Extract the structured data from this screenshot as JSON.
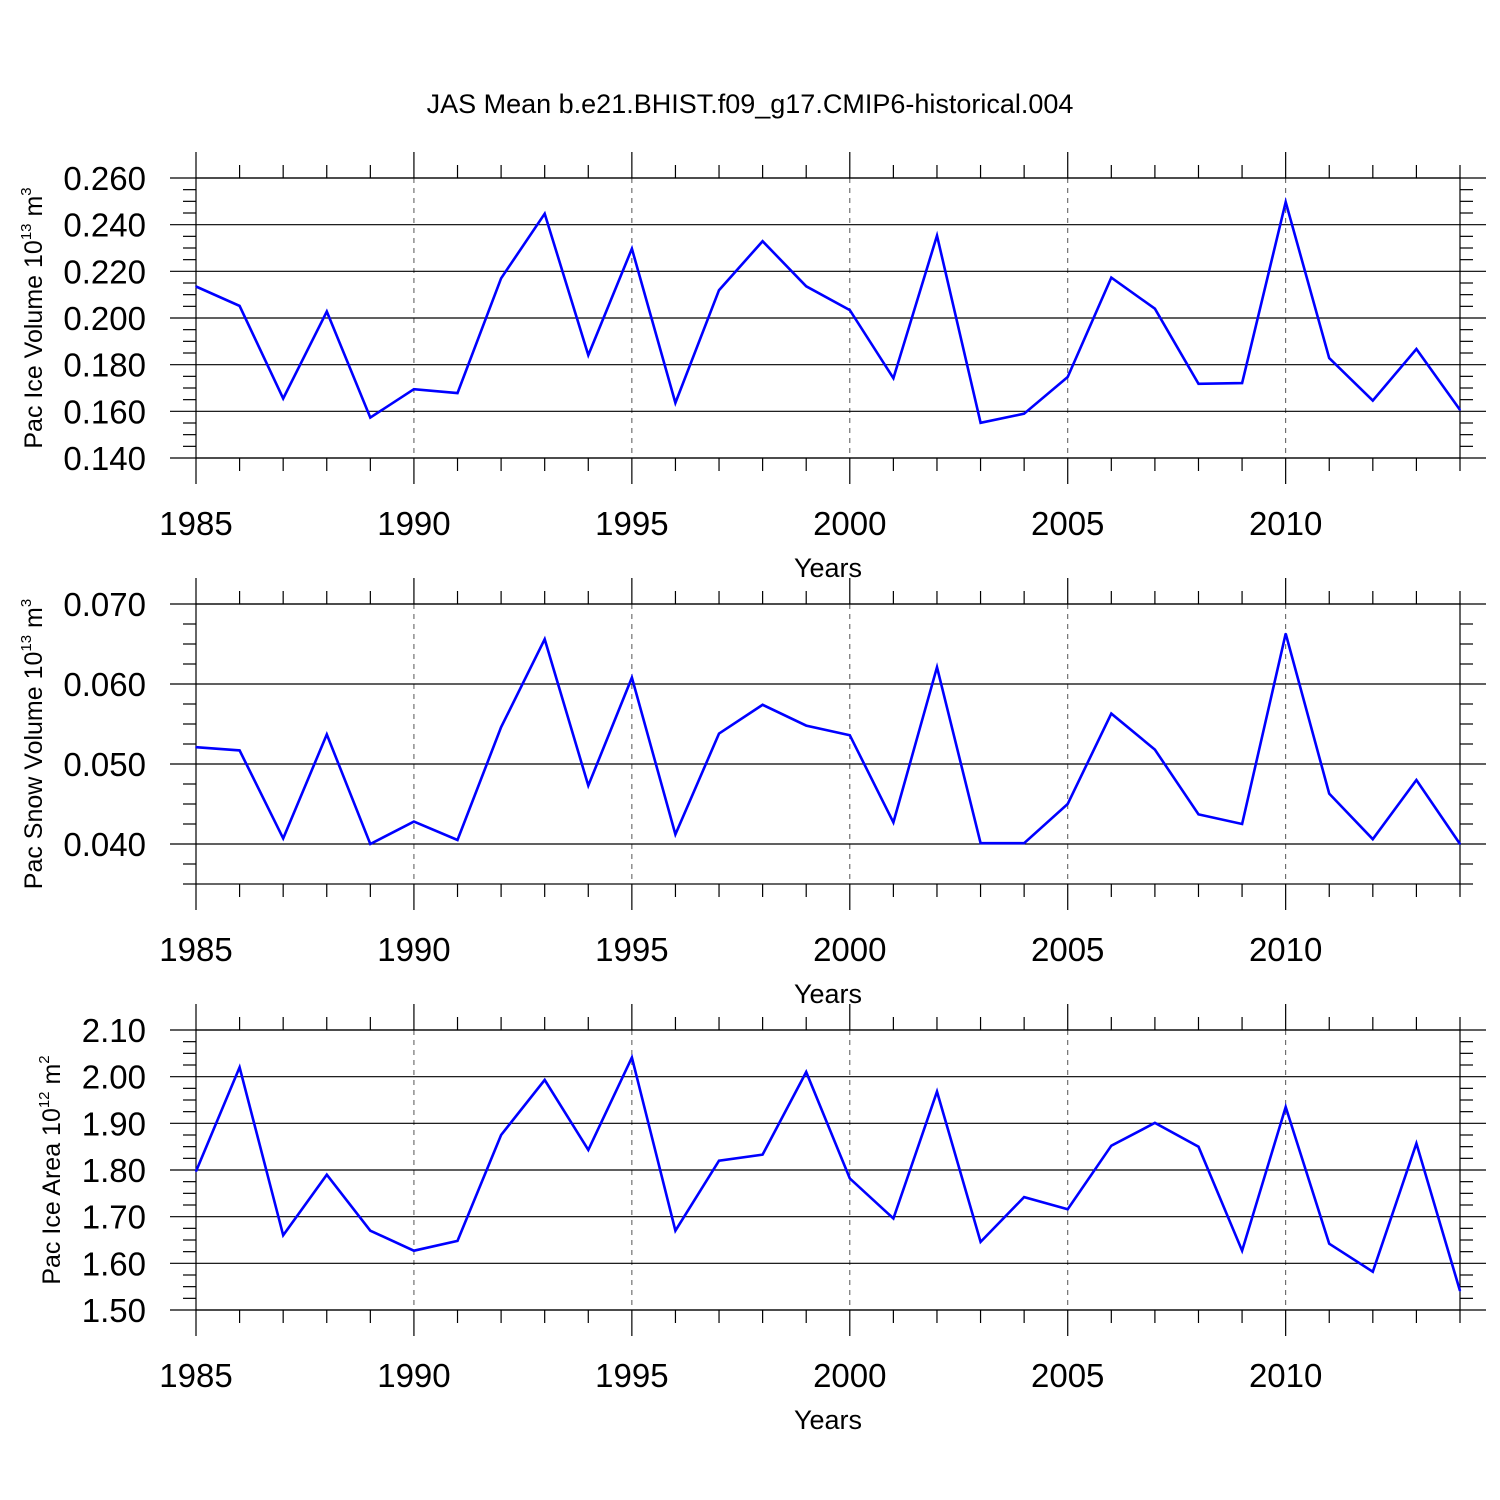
{
  "title": "JAS Mean b.e21.BHIST.f09_g17.CMIP6-historical.004",
  "chart_data": [
    {
      "type": "line",
      "ylabel": "Pac Ice Volume 10",
      "ylabel_exp": "13",
      "ylabel_unit": " m",
      "ylabel_unit_exp": "3",
      "xlabel": "Years",
      "xlim": [
        1985,
        2014
      ],
      "ylim": [
        0.14,
        0.26
      ],
      "yticks": [
        0.14,
        0.16,
        0.18,
        0.2,
        0.22,
        0.24,
        0.26
      ],
      "ytick_labels": [
        "0.140",
        "0.160",
        "0.180",
        "0.200",
        "0.220",
        "0.240",
        "0.260"
      ],
      "yminor_step": 0.005,
      "xticks": [
        1985,
        1990,
        1995,
        2000,
        2005,
        2010
      ],
      "xtick_labels": [
        "1985",
        "1990",
        "1995",
        "2000",
        "2005",
        "2010"
      ],
      "grid": "vertical dashed at major x ticks",
      "color": "#0000ff",
      "x": [
        1985,
        1986,
        1987,
        1988,
        1989,
        1990,
        1991,
        1992,
        1993,
        1994,
        1995,
        1996,
        1997,
        1998,
        1999,
        2000,
        2001,
        2002,
        2003,
        2004,
        2005,
        2006,
        2007,
        2008,
        2009,
        2010,
        2011,
        2012,
        2013,
        2014
      ],
      "values": [
        0.2135,
        0.2052,
        0.1655,
        0.2028,
        0.1573,
        0.1695,
        0.1678,
        0.217,
        0.2447,
        0.1841,
        0.2297,
        0.1636,
        0.2119,
        0.2329,
        0.2136,
        0.2034,
        0.1742,
        0.2353,
        0.1551,
        0.159,
        0.1747,
        0.2173,
        0.204,
        0.1718,
        0.1721,
        0.2497,
        0.1828,
        0.1646,
        0.1867,
        0.1606
      ]
    },
    {
      "type": "line",
      "ylabel": "Pac Snow Volume 10",
      "ylabel_exp": "13",
      "ylabel_unit": " m",
      "ylabel_unit_exp": "3",
      "xlabel": "Years",
      "xlim": [
        1985,
        2014
      ],
      "ylim": [
        0.035,
        0.07
      ],
      "yticks": [
        0.04,
        0.05,
        0.06,
        0.07
      ],
      "ytick_labels": [
        "0.040",
        "0.050",
        "0.060",
        "0.070"
      ],
      "yminor_step": 0.0025,
      "xticks": [
        1985,
        1990,
        1995,
        2000,
        2005,
        2010
      ],
      "xtick_labels": [
        "1985",
        "1990",
        "1995",
        "2000",
        "2005",
        "2010"
      ],
      "grid": "vertical dashed at major x ticks",
      "color": "#0000ff",
      "x": [
        1985,
        1986,
        1987,
        1988,
        1989,
        1990,
        1991,
        1992,
        1993,
        1994,
        1995,
        1996,
        1997,
        1998,
        1999,
        2000,
        2001,
        2002,
        2003,
        2004,
        2005,
        2006,
        2007,
        2008,
        2009,
        2010,
        2011,
        2012,
        2013,
        2014
      ],
      "values": [
        0.0521,
        0.0517,
        0.0407,
        0.0537,
        0.04,
        0.0428,
        0.0405,
        0.0546,
        0.0656,
        0.0473,
        0.0608,
        0.0412,
        0.0538,
        0.0574,
        0.0548,
        0.0536,
        0.0427,
        0.0621,
        0.0401,
        0.0401,
        0.045,
        0.0563,
        0.0518,
        0.0437,
        0.0425,
        0.0663,
        0.0463,
        0.0406,
        0.048,
        0.04
      ]
    },
    {
      "type": "line",
      "ylabel": "Pac Ice Area 10",
      "ylabel_exp": "12",
      "ylabel_unit": " m",
      "ylabel_unit_exp": "2",
      "xlabel": "Years",
      "xlim": [
        1985,
        2014
      ],
      "ylim": [
        1.5,
        2.1
      ],
      "yticks": [
        1.5,
        1.6,
        1.7,
        1.8,
        1.9,
        2.0,
        2.1
      ],
      "ytick_labels": [
        "1.50",
        "1.60",
        "1.70",
        "1.80",
        "1.90",
        "2.00",
        "2.10"
      ],
      "yminor_step": 0.025,
      "xticks": [
        1985,
        1990,
        1995,
        2000,
        2005,
        2010
      ],
      "xtick_labels": [
        "1985",
        "1990",
        "1995",
        "2000",
        "2005",
        "2010"
      ],
      "grid": "vertical dashed at major x ticks",
      "color": "#0000ff",
      "x": [
        1985,
        1986,
        1987,
        1988,
        1989,
        1990,
        1991,
        1992,
        1993,
        1994,
        1995,
        1996,
        1997,
        1998,
        1999,
        2000,
        2001,
        2002,
        2003,
        2004,
        2005,
        2006,
        2007,
        2008,
        2009,
        2010,
        2011,
        2012,
        2013,
        2014
      ],
      "values": [
        1.797,
        2.02,
        1.66,
        1.79,
        1.67,
        1.627,
        1.648,
        1.875,
        1.993,
        1.843,
        2.041,
        1.67,
        1.82,
        1.833,
        2.01,
        1.782,
        1.696,
        1.968,
        1.646,
        1.742,
        1.716,
        1.852,
        1.901,
        1.85,
        1.627,
        1.935,
        1.642,
        1.582,
        1.857,
        1.541
      ]
    }
  ]
}
